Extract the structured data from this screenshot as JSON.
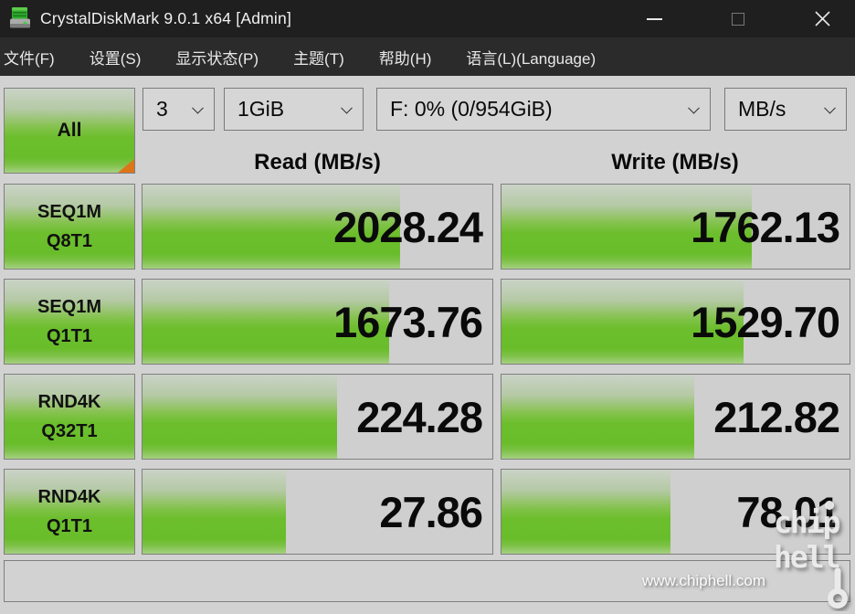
{
  "window": {
    "title": "CrystalDiskMark 9.0.1 x64 [Admin]"
  },
  "menu": {
    "items": [
      "文件(F)",
      "设置(S)",
      "显示状态(P)",
      "主题(T)",
      "帮助(H)",
      "语言(L)(Language)"
    ]
  },
  "toolbar": {
    "all_label": "All",
    "test_count": "3",
    "test_size": "1GiB",
    "target_drive": "F: 0% (0/954GiB)",
    "unit": "MB/s"
  },
  "columns": {
    "read": "Read (MB/s)",
    "write": "Write (MB/s)"
  },
  "rows": [
    {
      "label_line1": "SEQ1M",
      "label_line2": "Q8T1",
      "read": "2028.24",
      "write": "1762.13",
      "read_pct": 73.5,
      "write_pct": 72
    },
    {
      "label_line1": "SEQ1M",
      "label_line2": "Q1T1",
      "read": "1673.76",
      "write": "1529.70",
      "read_pct": 70.5,
      "write_pct": 69.5
    },
    {
      "label_line1": "RND4K",
      "label_line2": "Q32T1",
      "read": "224.28",
      "write": "212.82",
      "read_pct": 55.5,
      "write_pct": 55.5
    },
    {
      "label_line1": "RND4K",
      "label_line2": "Q1T1",
      "read": "27.86",
      "write": "78.01",
      "read_pct": 41,
      "write_pct": 48.5
    }
  ],
  "statusbar": {
    "watermark_text": "www.chiphell.com"
  },
  "watermark": {
    "line1": "chip",
    "line2": "hell"
  },
  "colors": {
    "green_mid": "#6cbe2d",
    "green_top": "#cbd3c7",
    "green_bottom": "#a6d182",
    "corner_orange": "#dd7519",
    "titlebar_bg": "#1f1f1f",
    "menubar_bg": "#2b2b2b",
    "client_bg": "#d2d2d2",
    "cell_border": "#7f7f7f"
  }
}
